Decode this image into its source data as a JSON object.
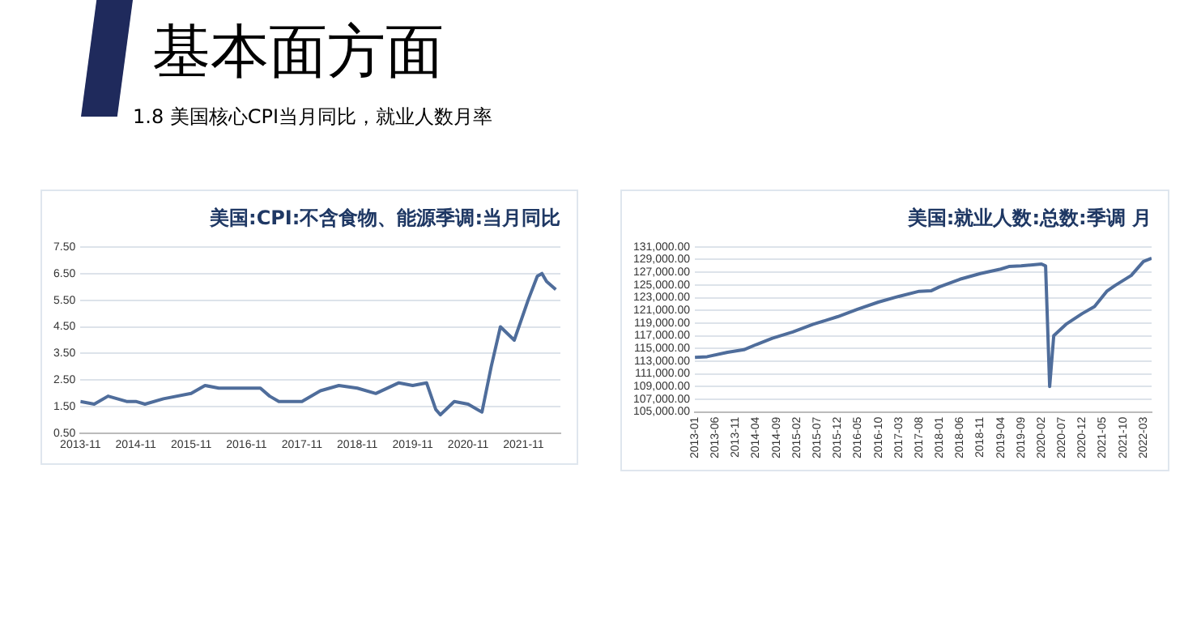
{
  "chart_data": [
    {
      "type": "line",
      "title": "美国:CPI:不含食物、能源季调:当月同比",
      "annotations": [
        "基本面方面",
        "1.8 美国核心CPI当月同比，就业人数月率"
      ],
      "x": [
        "2013-11",
        "2014-02",
        "2014-05",
        "2014-09",
        "2014-11",
        "2015-01",
        "2015-05",
        "2015-11",
        "2016-02",
        "2016-05",
        "2016-11",
        "2017-02",
        "2017-04",
        "2017-06",
        "2017-11",
        "2018-03",
        "2018-07",
        "2018-11",
        "2019-03",
        "2019-08",
        "2019-11",
        "2020-02",
        "2020-04",
        "2020-05",
        "2020-08",
        "2020-11",
        "2021-02",
        "2021-04",
        "2021-06",
        "2021-09",
        "2021-12",
        "2022-02",
        "2022-03",
        "2022-04",
        "2022-06"
      ],
      "series": [
        {
          "color": "#4f6d9b",
          "values": [
            1.7,
            1.6,
            1.9,
            1.7,
            1.7,
            1.6,
            1.8,
            2.0,
            2.3,
            2.2,
            2.2,
            2.2,
            1.9,
            1.7,
            1.7,
            2.1,
            2.3,
            2.2,
            2.0,
            2.4,
            2.3,
            2.4,
            1.4,
            1.2,
            1.7,
            1.6,
            1.3,
            3.0,
            4.5,
            4.0,
            5.5,
            6.4,
            6.5,
            6.2,
            5.9
          ]
        }
      ],
      "xlim": [
        "2013-11",
        "2022-07"
      ],
      "xticks": [
        "2013-11",
        "2014-11",
        "2015-11",
        "2016-11",
        "2017-11",
        "2018-11",
        "2019-11",
        "2020-11",
        "2021-11"
      ],
      "ylim": [
        0.5,
        7.5
      ],
      "yticks": [
        {
          "value": 0.5,
          "label": "0.50"
        },
        {
          "value": 1.5,
          "label": "1.50"
        },
        {
          "value": 2.5,
          "label": "2.50"
        },
        {
          "value": 3.5,
          "label": "3.50"
        },
        {
          "value": 4.5,
          "label": "4.50"
        },
        {
          "value": 5.5,
          "label": "5.50"
        },
        {
          "value": 6.5,
          "label": "6.50"
        },
        {
          "value": 7.5,
          "label": "7.50"
        }
      ],
      "grid": "y",
      "marker": "none",
      "line_style": "solid"
    },
    {
      "type": "line",
      "title": "美国:就业人数:总数:季调 月",
      "x": [
        "2013-01",
        "2013-04",
        "2013-09",
        "2014-01",
        "2014-04",
        "2014-08",
        "2015-01",
        "2015-06",
        "2015-12",
        "2016-05",
        "2016-10",
        "2017-03",
        "2017-08",
        "2017-11",
        "2018-01",
        "2018-06",
        "2018-11",
        "2019-04",
        "2019-06",
        "2019-09",
        "2020-02",
        "2020-03",
        "2020-04",
        "2020-05",
        "2020-08",
        "2020-12",
        "2021-03",
        "2021-06",
        "2021-08",
        "2021-12",
        "2022-03",
        "2022-05"
      ],
      "series": [
        {
          "color": "#4f6d9b",
          "values": [
            113600,
            113700,
            114400,
            114800,
            115600,
            116600,
            117600,
            118800,
            120000,
            121200,
            122300,
            123200,
            124000,
            124100,
            124700,
            125900,
            126800,
            127500,
            127900,
            128000,
            128300,
            128000,
            109000,
            117000,
            118800,
            120500,
            121600,
            124000,
            124900,
            126500,
            128700,
            129200
          ]
        }
      ],
      "xlim": [
        "2013-01",
        "2022-05"
      ],
      "xticks": [
        "2013-01",
        "2013-06",
        "2013-11",
        "2014-04",
        "2014-09",
        "2015-02",
        "2015-07",
        "2015-12",
        "2016-05",
        "2016-10",
        "2017-03",
        "2017-08",
        "2018-01",
        "2018-06",
        "2018-11",
        "2019-04",
        "2019-09",
        "2020-02",
        "2020-07",
        "2020-12",
        "2021-05",
        "2021-10",
        "2022-03"
      ],
      "ylim": [
        105000,
        131000
      ],
      "yticks": [
        {
          "value": 105000,
          "label": "105,000.00"
        },
        {
          "value": 107000,
          "label": "107,000.00"
        },
        {
          "value": 109000,
          "label": "109,000.00"
        },
        {
          "value": 111000,
          "label": "111,000.00"
        },
        {
          "value": 113000,
          "label": "113,000.00"
        },
        {
          "value": 115000,
          "label": "115,000.00"
        },
        {
          "value": 117000,
          "label": "117,000.00"
        },
        {
          "value": 119000,
          "label": "119,000.00"
        },
        {
          "value": 121000,
          "label": "121,000.00"
        },
        {
          "value": 123000,
          "label": "123,000.00"
        },
        {
          "value": 125000,
          "label": "125,000.00"
        },
        {
          "value": 127000,
          "label": "127,000.00"
        },
        {
          "value": 129000,
          "label": "129,000.00"
        },
        {
          "value": 131000,
          "label": "131,000.00"
        }
      ],
      "grid": "y",
      "marker": "none",
      "line_style": "solid"
    }
  ]
}
